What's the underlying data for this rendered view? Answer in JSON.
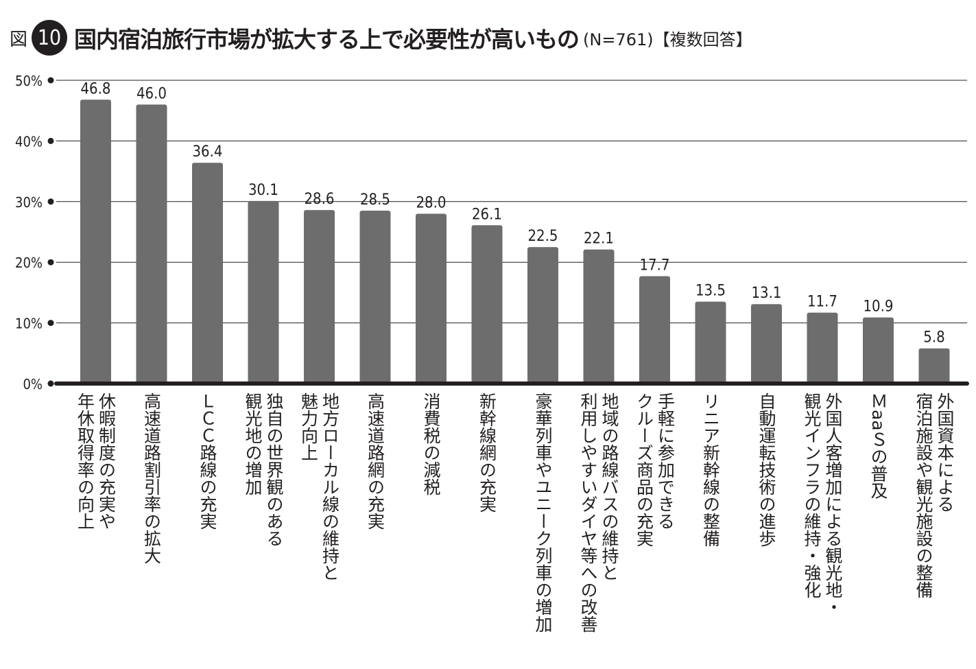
{
  "header": {
    "prefix": "図",
    "number": "10",
    "title": "国内宿泊旅行市場が拡大する上で必要性が高いもの",
    "note": "(N=761)【複数回答】"
  },
  "colors": {
    "bar": "#6d6d6d",
    "axis": "#231f20",
    "grid": "#231f20",
    "text": "#231f20"
  },
  "chart_data": {
    "type": "bar",
    "title": "国内宿泊旅行市場が拡大する上で必要性が高いもの",
    "ylim": [
      0,
      50
    ],
    "yticks": [
      "0%",
      "10%",
      "20%",
      "30%",
      "40%",
      "50%"
    ],
    "grid": true,
    "categories": [
      "休暇制度の充実や\n年休取得率の向上",
      "高速道路割引率の拡大",
      "ＬＣＣ路線の充実",
      "独自の世界観のある\n観光地の増加",
      "地方ローカル線の維持と\n魅力向上",
      "高速道路網の充実",
      "消費税の減税",
      "新幹線網の充実",
      "豪華列車やユニーク列車の増加",
      "地域の路線バスの維持と\n利用しやすいダイヤ等への改善",
      "手軽に参加できる\nクルーズ商品の充実",
      "リニア新幹線の整備",
      "自動運転技術の進歩",
      "外国人客増加による観光地・\n観光インフラの維持・強化",
      "ＭaaＳの普及",
      "外国資本による\n宿泊施設や観光施設の整備"
    ],
    "values": [
      46.8,
      46.0,
      36.4,
      30.1,
      28.6,
      28.5,
      28.0,
      26.1,
      22.5,
      22.1,
      17.7,
      13.5,
      13.1,
      11.7,
      10.9,
      5.8
    ],
    "value_labels": [
      "46.8",
      "46.0",
      "36.4",
      "30.1",
      "28.6",
      "28.5",
      "28.0",
      "26.1",
      "22.5",
      "22.1",
      "17.7",
      "13.5",
      "13.1",
      "11.7",
      "10.9",
      "5.8"
    ]
  }
}
